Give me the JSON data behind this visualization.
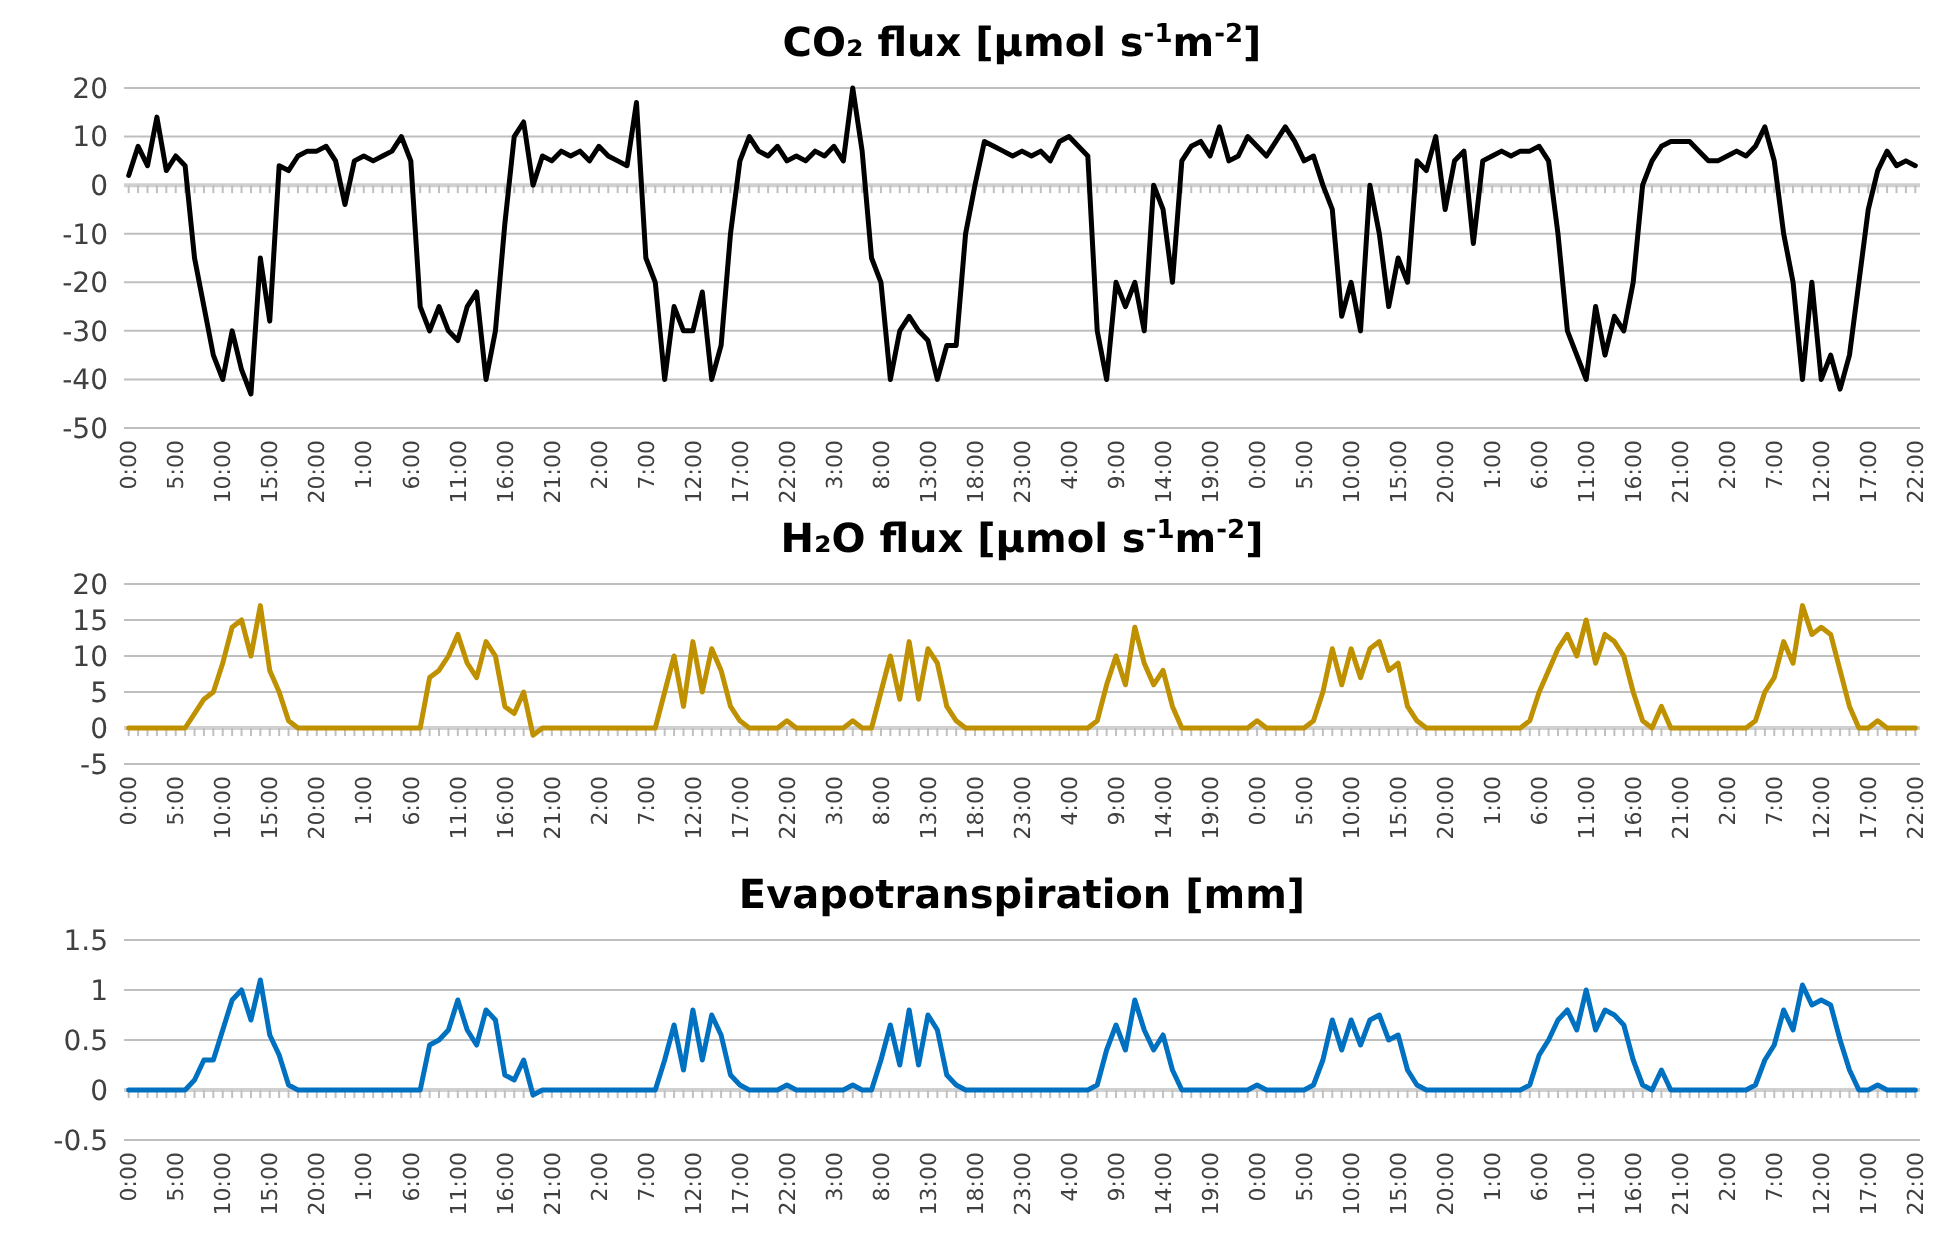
{
  "chart_data": [
    {
      "type": "line",
      "title": "CO₂ flux [µmol s$^{-1}$m$^{-2}$]",
      "categories": [
        "0:00",
        null,
        null,
        null,
        null,
        "5:00",
        null,
        null,
        null,
        null,
        "10:00",
        null,
        null,
        null,
        null,
        "15:00",
        null,
        null,
        null,
        null,
        "20:00",
        null,
        null,
        null,
        null,
        "1:00",
        null,
        null,
        null,
        null,
        "6:00",
        null,
        null,
        null,
        null,
        "11:00",
        null,
        null,
        null,
        null,
        "16:00",
        null,
        null,
        null,
        null,
        "21:00",
        null,
        null,
        null,
        null,
        "2:00",
        null,
        null,
        null,
        null,
        "7:00",
        null,
        null,
        null,
        null,
        "12:00",
        null,
        null,
        null,
        null,
        "17:00",
        null,
        null,
        null,
        null,
        "22:00",
        null,
        null,
        null,
        null,
        "3:00",
        null,
        null,
        null,
        null,
        "8:00",
        null,
        null,
        null,
        null,
        "13:00",
        null,
        null,
        null,
        null,
        "18:00",
        null,
        null,
        null,
        null,
        "23:00",
        null,
        null,
        null,
        null,
        "4:00",
        null,
        null,
        null,
        null,
        "9:00",
        null,
        null,
        null,
        null,
        "14:00",
        null,
        null,
        null,
        null,
        "19:00",
        null,
        null,
        null,
        null,
        "0:00",
        null,
        null,
        null,
        null,
        "5:00",
        null,
        null,
        null,
        null,
        "10:00",
        null,
        null,
        null,
        null,
        "15:00",
        null,
        null,
        null,
        null,
        "20:00",
        null,
        null,
        null,
        null,
        "1:00",
        null,
        null,
        null,
        null,
        "6:00",
        null,
        null,
        null,
        null,
        "11:00",
        null,
        null,
        null,
        null,
        "16:00",
        null,
        null,
        null,
        null,
        "21:00",
        null,
        null,
        null,
        null,
        "2:00",
        null,
        null,
        null,
        null,
        "7:00",
        null,
        null,
        null,
        null,
        "12:00",
        null,
        null,
        null,
        null,
        "17:00",
        null,
        null,
        null,
        null,
        "22:00"
      ],
      "series": [
        {
          "color": "#000000",
          "values": [
            2,
            8,
            4,
            14,
            3,
            6,
            4,
            -15,
            -25,
            -35,
            -40,
            -30,
            -38,
            -43,
            -15,
            -28,
            4,
            3,
            6,
            7,
            7,
            8,
            5,
            -4,
            5,
            6,
            5,
            6,
            7,
            10,
            5,
            -25,
            -30,
            -25,
            -30,
            -32,
            -25,
            -22,
            -40,
            -30,
            -8,
            10,
            13,
            0,
            6,
            5,
            7,
            6,
            7,
            5,
            8,
            6,
            5,
            4,
            17,
            -15,
            -20,
            -40,
            -25,
            -30,
            -30,
            -22,
            -40,
            -33,
            -10,
            5,
            10,
            7,
            6,
            8,
            5,
            6,
            5,
            7,
            6,
            8,
            5,
            20,
            7,
            -15,
            -20,
            -40,
            -30,
            -27,
            -30,
            -32,
            -40,
            -33,
            -33,
            -10,
            0,
            9,
            8,
            7,
            6,
            7,
            6,
            7,
            5,
            9,
            10,
            8,
            6,
            -30,
            -40,
            -20,
            -25,
            -20,
            -30,
            0,
            -5,
            -20,
            5,
            8,
            9,
            6,
            12,
            5,
            6,
            10,
            8,
            6,
            9,
            12,
            9,
            5,
            6,
            0,
            -5,
            -27,
            -20,
            -30,
            0,
            -10,
            -25,
            -15,
            -20,
            5,
            3,
            10,
            -5,
            5,
            7,
            -12,
            5,
            6,
            7,
            6,
            7,
            7,
            8,
            5,
            -10,
            -30,
            -35,
            -40,
            -25,
            -35,
            -27,
            -30,
            -20,
            0,
            5,
            8,
            9,
            9,
            9,
            7,
            5,
            5,
            6,
            7,
            6,
            8,
            12,
            5,
            -10,
            -20,
            -40,
            -20,
            -40,
            -35,
            -42,
            -35,
            -20,
            -5,
            3,
            7,
            4,
            5,
            4
          ]
        }
      ],
      "ylim": [
        -50,
        20
      ],
      "yticks": [
        -50,
        -40,
        -30,
        -20,
        -10,
        0,
        10,
        20
      ],
      "grid": "y"
    },
    {
      "type": "line",
      "title": "H₂O flux [µmol s$^{-1}$m$^{-2}$]",
      "categories": [
        "0:00",
        null,
        null,
        null,
        null,
        "5:00",
        null,
        null,
        null,
        null,
        "10:00",
        null,
        null,
        null,
        null,
        "15:00",
        null,
        null,
        null,
        null,
        "20:00",
        null,
        null,
        null,
        null,
        "1:00",
        null,
        null,
        null,
        null,
        "6:00",
        null,
        null,
        null,
        null,
        "11:00",
        null,
        null,
        null,
        null,
        "16:00",
        null,
        null,
        null,
        null,
        "21:00",
        null,
        null,
        null,
        null,
        "2:00",
        null,
        null,
        null,
        null,
        "7:00",
        null,
        null,
        null,
        null,
        "12:00",
        null,
        null,
        null,
        null,
        "17:00",
        null,
        null,
        null,
        null,
        "22:00",
        null,
        null,
        null,
        null,
        "3:00",
        null,
        null,
        null,
        null,
        "8:00",
        null,
        null,
        null,
        null,
        "13:00",
        null,
        null,
        null,
        null,
        "18:00",
        null,
        null,
        null,
        null,
        "23:00",
        null,
        null,
        null,
        null,
        "4:00",
        null,
        null,
        null,
        null,
        "9:00",
        null,
        null,
        null,
        null,
        "14:00",
        null,
        null,
        null,
        null,
        "19:00",
        null,
        null,
        null,
        null,
        "0:00",
        null,
        null,
        null,
        null,
        "5:00",
        null,
        null,
        null,
        null,
        "10:00",
        null,
        null,
        null,
        null,
        "15:00",
        null,
        null,
        null,
        null,
        "20:00",
        null,
        null,
        null,
        null,
        "1:00",
        null,
        null,
        null,
        null,
        "6:00",
        null,
        null,
        null,
        null,
        "11:00",
        null,
        null,
        null,
        null,
        "16:00",
        null,
        null,
        null,
        null,
        "21:00",
        null,
        null,
        null,
        null,
        "2:00",
        null,
        null,
        null,
        null,
        "7:00",
        null,
        null,
        null,
        null,
        "12:00",
        null,
        null,
        null,
        null,
        "17:00",
        null,
        null,
        null,
        null,
        "22:00"
      ],
      "series": [
        {
          "color": "#bf9000",
          "values": [
            0,
            0,
            0,
            0,
            0,
            0,
            0,
            2,
            4,
            5,
            9,
            14,
            15,
            10,
            17,
            8,
            5,
            1,
            0,
            0,
            0,
            0,
            0,
            0,
            0,
            0,
            0,
            0,
            0,
            0,
            0,
            0,
            7,
            8,
            10,
            13,
            9,
            7,
            12,
            10,
            3,
            2,
            5,
            -1,
            0,
            0,
            0,
            0,
            0,
            0,
            0,
            0,
            0,
            0,
            0,
            0,
            0,
            5,
            10,
            3,
            12,
            5,
            11,
            8,
            3,
            1,
            0,
            0,
            0,
            0,
            1,
            0,
            0,
            0,
            0,
            0,
            0,
            1,
            0,
            0,
            5,
            10,
            4,
            12,
            4,
            11,
            9,
            3,
            1,
            0,
            0,
            0,
            0,
            0,
            0,
            0,
            0,
            0,
            0,
            0,
            0,
            0,
            0,
            1,
            6,
            10,
            6,
            14,
            9,
            6,
            8,
            3,
            0,
            0,
            0,
            0,
            0,
            0,
            0,
            0,
            1,
            0,
            0,
            0,
            0,
            0,
            1,
            5,
            11,
            6,
            11,
            7,
            11,
            12,
            8,
            9,
            3,
            1,
            0,
            0,
            0,
            0,
            0,
            0,
            0,
            0,
            0,
            0,
            0,
            1,
            5,
            8,
            11,
            13,
            10,
            15,
            9,
            13,
            12,
            10,
            5,
            1,
            0,
            3,
            0,
            0,
            0,
            0,
            0,
            0,
            0,
            0,
            0,
            1,
            5,
            7,
            12,
            9,
            17,
            13,
            14,
            13,
            8,
            3,
            0,
            0,
            1,
            0,
            0,
            0,
            0
          ]
        }
      ],
      "ylim": [
        -5,
        20
      ],
      "yticks": [
        -5,
        0,
        5,
        10,
        15,
        20
      ],
      "grid": "y"
    },
    {
      "type": "line",
      "title": "Evapotranspiration [mm]",
      "categories": [
        "0:00",
        null,
        null,
        null,
        null,
        "5:00",
        null,
        null,
        null,
        null,
        "10:00",
        null,
        null,
        null,
        null,
        "15:00",
        null,
        null,
        null,
        null,
        "20:00",
        null,
        null,
        null,
        null,
        "1:00",
        null,
        null,
        null,
        null,
        "6:00",
        null,
        null,
        null,
        null,
        "11:00",
        null,
        null,
        null,
        null,
        "16:00",
        null,
        null,
        null,
        null,
        "21:00",
        null,
        null,
        null,
        null,
        "2:00",
        null,
        null,
        null,
        null,
        "7:00",
        null,
        null,
        null,
        null,
        "12:00",
        null,
        null,
        null,
        null,
        "17:00",
        null,
        null,
        null,
        null,
        "22:00",
        null,
        null,
        null,
        null,
        "3:00",
        null,
        null,
        null,
        null,
        "8:00",
        null,
        null,
        null,
        null,
        "13:00",
        null,
        null,
        null,
        null,
        "18:00",
        null,
        null,
        null,
        null,
        "23:00",
        null,
        null,
        null,
        null,
        "4:00",
        null,
        null,
        null,
        null,
        "9:00",
        null,
        null,
        null,
        null,
        "14:00",
        null,
        null,
        null,
        null,
        "19:00",
        null,
        null,
        null,
        null,
        "0:00",
        null,
        null,
        null,
        null,
        "5:00",
        null,
        null,
        null,
        null,
        "10:00",
        null,
        null,
        null,
        null,
        "15:00",
        null,
        null,
        null,
        null,
        "20:00",
        null,
        null,
        null,
        null,
        "1:00",
        null,
        null,
        null,
        null,
        "6:00",
        null,
        null,
        null,
        null,
        "11:00",
        null,
        null,
        null,
        null,
        "16:00",
        null,
        null,
        null,
        null,
        "21:00",
        null,
        null,
        null,
        null,
        "2:00",
        null,
        null,
        null,
        null,
        "7:00",
        null,
        null,
        null,
        null,
        "12:00",
        null,
        null,
        null,
        null,
        "17:00",
        null,
        null,
        null,
        null,
        "22:00"
      ],
      "series": [
        {
          "color": "#0070c0",
          "values": [
            0,
            0,
            0,
            0,
            0,
            0,
            0,
            0.1,
            0.3,
            0.3,
            0.6,
            0.9,
            1,
            0.7,
            1.1,
            0.55,
            0.35,
            0.05,
            0,
            0,
            0,
            0,
            0,
            0,
            0,
            0,
            0,
            0,
            0,
            0,
            0,
            0,
            0.45,
            0.5,
            0.6,
            0.9,
            0.6,
            0.45,
            0.8,
            0.7,
            0.15,
            0.1,
            0.3,
            -0.05,
            0,
            0,
            0,
            0,
            0,
            0,
            0,
            0,
            0,
            0,
            0,
            0,
            0,
            0.3,
            0.65,
            0.2,
            0.8,
            0.3,
            0.75,
            0.55,
            0.15,
            0.05,
            0,
            0,
            0,
            0,
            0.05,
            0,
            0,
            0,
            0,
            0,
            0,
            0.05,
            0,
            0,
            0.3,
            0.65,
            0.25,
            0.8,
            0.25,
            0.75,
            0.6,
            0.15,
            0.05,
            0,
            0,
            0,
            0,
            0,
            0,
            0,
            0,
            0,
            0,
            0,
            0,
            0,
            0,
            0.05,
            0.4,
            0.65,
            0.4,
            0.9,
            0.6,
            0.4,
            0.55,
            0.2,
            0,
            0,
            0,
            0,
            0,
            0,
            0,
            0,
            0.05,
            0,
            0,
            0,
            0,
            0,
            0.05,
            0.3,
            0.7,
            0.4,
            0.7,
            0.45,
            0.7,
            0.75,
            0.5,
            0.55,
            0.2,
            0.05,
            0,
            0,
            0,
            0,
            0,
            0,
            0,
            0,
            0,
            0,
            0,
            0.05,
            0.35,
            0.5,
            0.7,
            0.8,
            0.6,
            1,
            0.6,
            0.8,
            0.75,
            0.65,
            0.3,
            0.05,
            0,
            0.2,
            0,
            0,
            0,
            0,
            0,
            0,
            0,
            0,
            0,
            0.05,
            0.3,
            0.45,
            0.8,
            0.6,
            1.05,
            0.85,
            0.9,
            0.85,
            0.5,
            0.2,
            0,
            0,
            0.05,
            0,
            0,
            0,
            0
          ]
        }
      ],
      "ylim": [
        -0.5,
        1.5
      ],
      "yticks": [
        -0.5,
        0,
        0.5,
        1,
        1.5
      ],
      "grid": "y"
    }
  ]
}
